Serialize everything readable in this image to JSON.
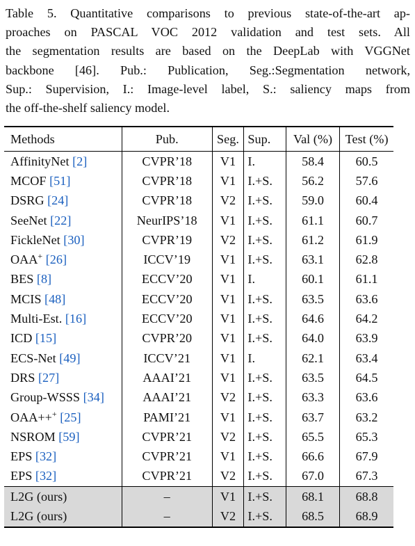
{
  "caption": {
    "lines": [
      "Table 5. Quantitative comparisons to previous state-of-the-art ap-",
      "proaches on PASCAL VOC 2012 validation and test sets.  All",
      "the segmentation results are based on the DeepLab with VGGNet",
      "backbone [46].  Pub.: Publication, Seg.:Segmentation network,",
      "Sup.: Supervision, I.: Image-level label, S.: saliency maps from",
      "the off-the-shelf saliency model."
    ]
  },
  "table": {
    "headers": {
      "methods": "Methods",
      "pub": "Pub.",
      "seg": "Seg.",
      "sup": "Sup.",
      "val": "Val (%)",
      "test": "Test (%)"
    },
    "rows": [
      {
        "method": "AffinityNet",
        "cite": "[2]",
        "pub": "CVPR’18",
        "seg": "V1",
        "sup": "I.",
        "val": "58.4",
        "test": "60.5"
      },
      {
        "method": "MCOF",
        "cite": "[51]",
        "pub": "CVPR’18",
        "seg": "V1",
        "sup": "I.+S.",
        "val": "56.2",
        "test": "57.6"
      },
      {
        "method": "DSRG",
        "cite": "[24]",
        "pub": "CVPR’18",
        "seg": "V2",
        "sup": "I.+S.",
        "val": "59.0",
        "test": "60.4"
      },
      {
        "method": "SeeNet",
        "cite": "[22]",
        "pub": "NeurIPS’18",
        "seg": "V1",
        "sup": "I.+S.",
        "val": "61.1",
        "test": "60.7"
      },
      {
        "method": "FickleNet",
        "cite": "[30]",
        "pub": "CVPR’19",
        "seg": "V2",
        "sup": "I.+S.",
        "val": "61.2",
        "test": "61.9"
      },
      {
        "method": "OAA",
        "sup_mark": "+",
        "cite": "[26]",
        "pub": "ICCV’19",
        "seg": "V1",
        "sup": "I.+S.",
        "val": "63.1",
        "test": "62.8"
      },
      {
        "method": "BES",
        "cite": "[8]",
        "pub": "ECCV’20",
        "seg": "V1",
        "sup": "I.",
        "val": "60.1",
        "test": "61.1"
      },
      {
        "method": "MCIS",
        "cite": "[48]",
        "pub": "ECCV’20",
        "seg": "V1",
        "sup": "I.+S.",
        "val": "63.5",
        "test": "63.6"
      },
      {
        "method": "Multi-Est.",
        "cite": "[16]",
        "pub": "ECCV’20",
        "seg": "V1",
        "sup": "I.+S.",
        "val": "64.6",
        "test": "64.2"
      },
      {
        "method": "ICD",
        "cite": "[15]",
        "pub": "CVPR’20",
        "seg": "V1",
        "sup": "I.+S.",
        "val": "64.0",
        "test": "63.9"
      },
      {
        "method": "ECS-Net",
        "cite": "[49]",
        "pub": "ICCV’21",
        "seg": "V1",
        "sup": "I.",
        "val": "62.1",
        "test": "63.4"
      },
      {
        "method": "DRS",
        "cite": "[27]",
        "pub": "AAAI’21",
        "seg": "V1",
        "sup": "I.+S.",
        "val": "63.5",
        "test": "64.5"
      },
      {
        "method": "Group-WSSS",
        "cite": "[34]",
        "pub": "AAAI’21",
        "seg": "V2",
        "sup": "I.+S.",
        "val": "63.3",
        "test": "63.6"
      },
      {
        "method": "OAA++",
        "sup_mark": "+",
        "cite": "[25]",
        "pub": "PAMI’21",
        "seg": "V1",
        "sup": "I.+S.",
        "val": "63.7",
        "test": "63.2"
      },
      {
        "method": "NSROM",
        "cite": "[59]",
        "pub": "CVPR’21",
        "seg": "V2",
        "sup": "I.+S.",
        "val": "65.5",
        "test": "65.3"
      },
      {
        "method": "EPS",
        "cite": "[32]",
        "pub": "CVPR’21",
        "seg": "V1",
        "sup": "I.+S.",
        "val": "66.6",
        "test": "67.9"
      },
      {
        "method": "EPS",
        "cite": "[32]",
        "pub": "CVPR’21",
        "seg": "V2",
        "sup": "I.+S.",
        "val": "67.0",
        "test": "67.3"
      }
    ],
    "ours": [
      {
        "method": "L2G (ours)",
        "pub": "–",
        "seg": "V1",
        "sup": "I.+S.",
        "val": "68.1",
        "test": "68.8"
      },
      {
        "method": "L2G (ours)",
        "pub": "–",
        "seg": "V2",
        "sup": "I.+S.",
        "val": "68.5",
        "test": "68.9"
      }
    ]
  },
  "colors": {
    "citation": "#1a5fbf",
    "highlight_row": "#d9d9d9",
    "text": "#111111"
  }
}
